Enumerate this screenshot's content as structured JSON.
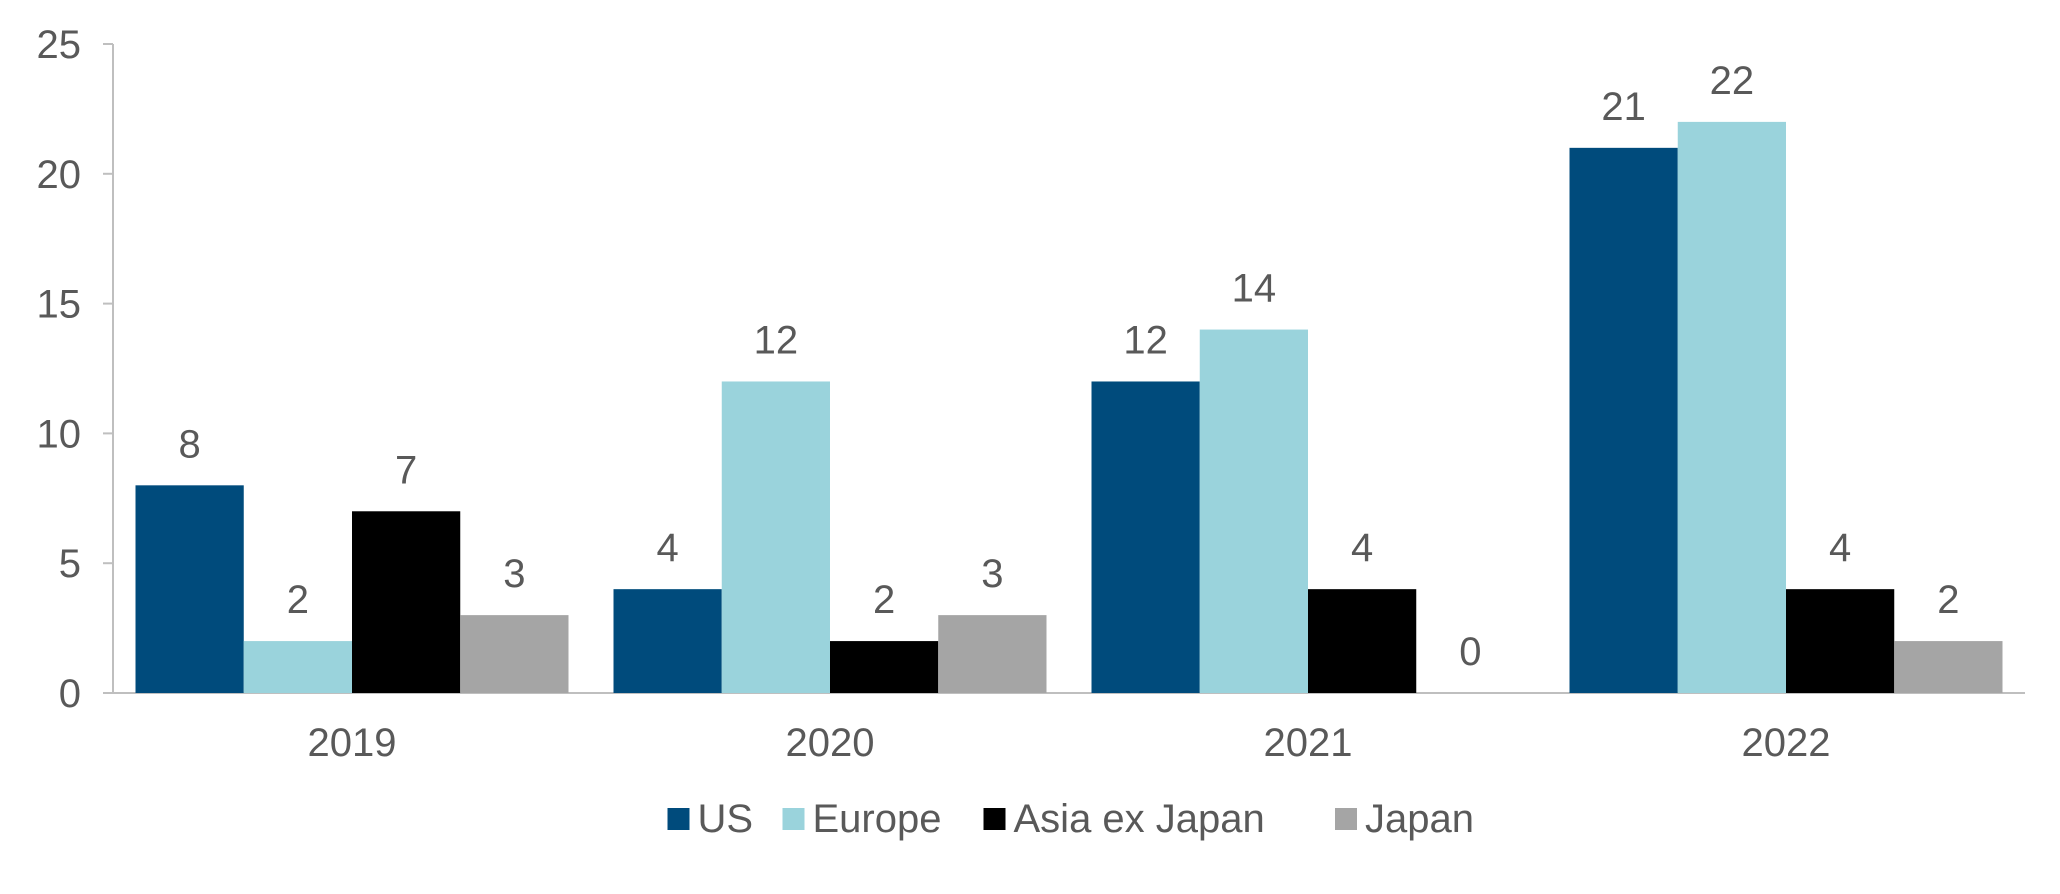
{
  "chart_data": {
    "type": "bar",
    "title": "",
    "xlabel": "",
    "ylabel": "",
    "categories": [
      "2019",
      "2020",
      "2021",
      "2022"
    ],
    "series": [
      {
        "name": "US",
        "color": "#004b7c",
        "values": [
          8,
          4,
          12,
          21
        ]
      },
      {
        "name": "Europe",
        "color": "#9ad3dc",
        "values": [
          2,
          12,
          14,
          22
        ]
      },
      {
        "name": "Asia ex Japan",
        "color": "#000000",
        "values": [
          7,
          2,
          4,
          4
        ]
      },
      {
        "name": "Japan",
        "color": "#a5a5a5",
        "values": [
          3,
          3,
          0,
          2
        ]
      }
    ],
    "ylim": [
      0,
      25
    ],
    "yticks": [
      0,
      5,
      10,
      15,
      20,
      25
    ],
    "grid": false,
    "data_labels": true,
    "legend_position": "bottom"
  }
}
